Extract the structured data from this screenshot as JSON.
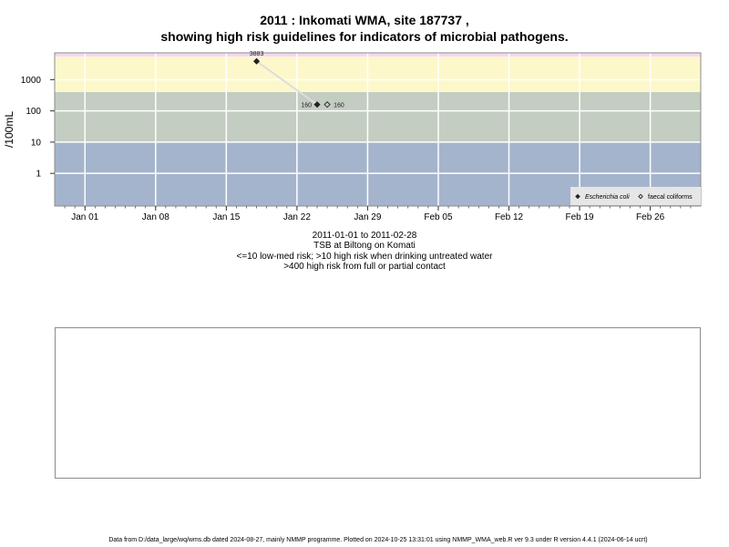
{
  "chart_data": {
    "type": "scatter",
    "title": "2011 : Inkomati WMA, site 187737 ,",
    "subtitle": "showing high risk guidelines for indicators of microbial pathogens.",
    "ylabel": "/100mL",
    "y_scale": "log",
    "y_ticks": [
      "1",
      "10",
      "100",
      "1000"
    ],
    "x_ticks": [
      "Jan 01",
      "Jan 08",
      "Jan 15",
      "Jan 22",
      "Jan 29",
      "Feb 05",
      "Feb 12",
      "Feb 19",
      "Feb 26"
    ],
    "xlim": [
      "2010-12-29",
      "2011-03-03"
    ],
    "ylim": [
      0.09,
      7200
    ],
    "bands": [
      {
        "label": "<=10 low-med risk",
        "from": 0.09,
        "to": 10,
        "color": "#a4b4cc"
      },
      {
        "label": ">10 high risk when drinking untreated water",
        "from": 10,
        "to": 400,
        "color": "#c3cdc1"
      },
      {
        "label": ">400 high risk from full or partial contact",
        "from": 400,
        "to": 5500,
        "color": "#fcf8ca"
      },
      {
        "label": "",
        "from": 5500,
        "to": 7200,
        "color": "#f5d8f5"
      }
    ],
    "series": [
      {
        "name": "Escherichia coli",
        "marker": "filled-diamond",
        "color": "#222222",
        "points": [
          {
            "x": "2011-01-18",
            "y": 3883,
            "label": "3883"
          },
          {
            "x": "2011-01-24",
            "y": 160,
            "label": "160"
          }
        ]
      },
      {
        "name": "faecal coliforms",
        "marker": "open-diamond",
        "color": "#222222",
        "points": [
          {
            "x": "2011-01-25",
            "y": 160,
            "label": "160"
          }
        ]
      }
    ],
    "legend_position": "bottom-right",
    "grid": true
  },
  "captions": {
    "date_range": "2011-01-01 to 2011-02-28",
    "site_name": "TSB at Biltong on Komati",
    "risk_low": "<=10 low-med risk; >10 high risk when drinking untreated water",
    "risk_high": ">400 high risk from full or partial contact"
  },
  "footer": "Data from D:/data_large/wq/wms.db dated 2024-08-27, mainly NMMP programme. Plotted on 2024-10-25 13:31:01 using NMMP_WMA_web.R ver 9.3 under R version 4.4.1 (2024-06-14 ucrt)"
}
